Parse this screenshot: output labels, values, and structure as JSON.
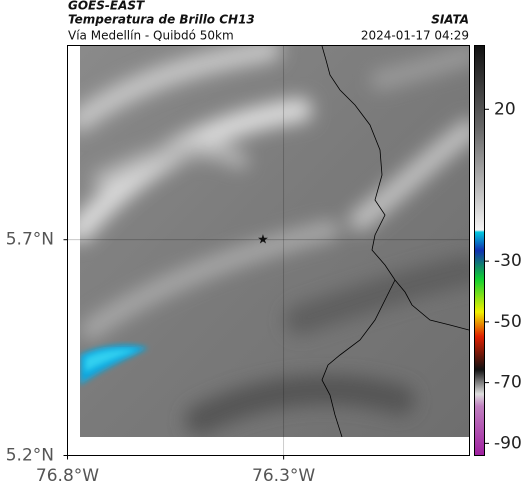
{
  "header": {
    "source": "GOES-EAST",
    "product": "Temperatura de Brillo CH13",
    "agency": "SIATA",
    "route": "Vía Medellín - Quibdó 50km",
    "timestamp": "2024-01-17 04:29"
  },
  "map": {
    "xlim": [
      -76.8,
      -75.87
    ],
    "ylim": [
      5.2,
      6.15
    ],
    "xticks": [
      {
        "value": -76.8,
        "label": "76.8°W"
      },
      {
        "value": -76.3,
        "label": "76.3°W"
      }
    ],
    "yticks": [
      {
        "value": 5.2,
        "label": "5.2°N"
      },
      {
        "value": 5.7,
        "label": "5.7°N"
      }
    ],
    "colorbar": {
      "clim": [
        41,
        -94
      ],
      "ticks": [
        20,
        -30,
        -50,
        -70,
        -90
      ]
    }
  }
}
